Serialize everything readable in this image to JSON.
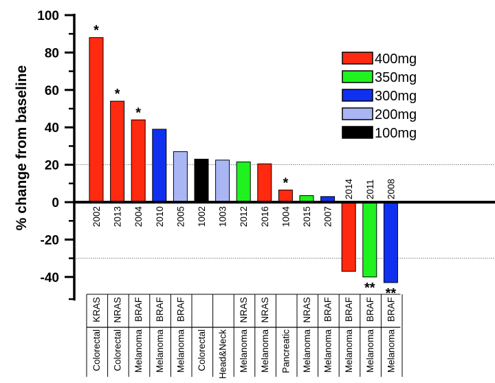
{
  "chart_data": {
    "type": "bar",
    "ylabel": "% change from baseline",
    "ylim": [
      -45,
      100
    ],
    "yticks": [
      -40,
      -20,
      0,
      20,
      40,
      60,
      80,
      100
    ],
    "reference_lines": [
      20,
      -30
    ],
    "bars": [
      {
        "id": "2002",
        "value": 88,
        "dose": "400mg",
        "tumor": "Colorectal",
        "mutation": "KRAS",
        "marker": "*"
      },
      {
        "id": "2013",
        "value": 54,
        "dose": "400mg",
        "tumor": "Colorectal",
        "mutation": "NRAS",
        "marker": "*"
      },
      {
        "id": "2004",
        "value": 44,
        "dose": "400mg",
        "tumor": "Melanoma",
        "mutation": "BRAF",
        "marker": "*"
      },
      {
        "id": "2010",
        "value": 39,
        "dose": "300mg",
        "tumor": "Melanoma",
        "mutation": "BRAF",
        "marker": ""
      },
      {
        "id": "2005",
        "value": 27,
        "dose": "200mg",
        "tumor": "Melanoma",
        "mutation": "BRAF",
        "marker": ""
      },
      {
        "id": "1002",
        "value": 23,
        "dose": "100mg",
        "tumor": "Colorectal",
        "mutation": "",
        "marker": ""
      },
      {
        "id": "1003",
        "value": 22.5,
        "dose": "200mg",
        "tumor": "Head&Neck",
        "mutation": "",
        "marker": ""
      },
      {
        "id": "2012",
        "value": 21.5,
        "dose": "350mg",
        "tumor": "Melanoma",
        "mutation": "NRAS",
        "marker": ""
      },
      {
        "id": "2016",
        "value": 20.5,
        "dose": "400mg",
        "tumor": "Melanoma",
        "mutation": "NRAS",
        "marker": ""
      },
      {
        "id": "1004",
        "value": 6.5,
        "dose": "400mg",
        "tumor": "Pancreatic",
        "mutation": "",
        "marker": "*"
      },
      {
        "id": "2015",
        "value": 3.5,
        "dose": "350mg",
        "tumor": "Melanoma",
        "mutation": "NRAS",
        "marker": ""
      },
      {
        "id": "2007",
        "value": 3,
        "dose": "300mg",
        "tumor": "Melanoma",
        "mutation": "BRAF",
        "marker": ""
      },
      {
        "id": "2014",
        "value": -37,
        "dose": "400mg",
        "tumor": "Melanoma",
        "mutation": "BRAF",
        "marker": ""
      },
      {
        "id": "2011",
        "value": -40,
        "dose": "350mg",
        "tumor": "Melanoma",
        "mutation": "BRAF",
        "marker": "**"
      },
      {
        "id": "2008",
        "value": -43,
        "dose": "300mg",
        "tumor": "Melanoma",
        "mutation": "BRAF",
        "marker": "**"
      }
    ],
    "legend": [
      {
        "label": "400mg",
        "color": "#ff2a10"
      },
      {
        "label": "350mg",
        "color": "#1ff21f"
      },
      {
        "label": "300mg",
        "color": "#1030f0"
      },
      {
        "label": "200mg",
        "color": "#aab6f4"
      },
      {
        "label": "100mg",
        "color": "#000000"
      }
    ],
    "legend_position": "top-right",
    "grid": false
  }
}
